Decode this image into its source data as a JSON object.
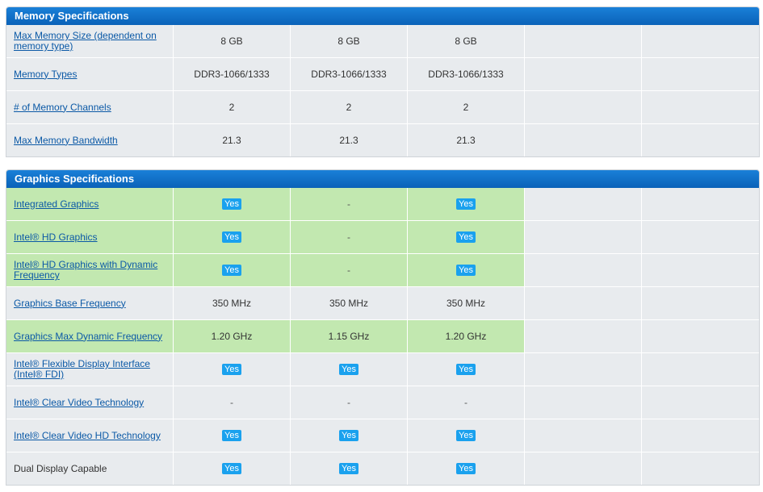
{
  "memory": {
    "title": "Memory Specifications",
    "rows": [
      {
        "label": "Max Memory Size (dependent on memory type)",
        "link": true,
        "highlight": false,
        "values": [
          "8 GB",
          "8 GB",
          "8 GB"
        ]
      },
      {
        "label": "Memory Types",
        "link": true,
        "highlight": false,
        "values": [
          "DDR3-1066/1333",
          "DDR3-1066/1333",
          "DDR3-1066/1333"
        ]
      },
      {
        "label": "# of Memory Channels",
        "link": true,
        "highlight": false,
        "values": [
          "2",
          "2",
          "2"
        ]
      },
      {
        "label": "Max Memory Bandwidth",
        "link": true,
        "highlight": false,
        "values": [
          "21.3",
          "21.3",
          "21.3"
        ]
      }
    ]
  },
  "graphics": {
    "title": "Graphics Specifications",
    "rows": [
      {
        "label": "Integrated Graphics",
        "link": true,
        "highlight": true,
        "values": [
          "Yes",
          "-",
          "Yes"
        ]
      },
      {
        "label": "Intel® HD Graphics",
        "link": true,
        "highlight": true,
        "values": [
          "Yes",
          "-",
          "Yes"
        ]
      },
      {
        "label": "Intel® HD Graphics with Dynamic Frequency",
        "link": true,
        "highlight": true,
        "values": [
          "Yes",
          "-",
          "Yes"
        ]
      },
      {
        "label": "Graphics Base Frequency",
        "link": true,
        "highlight": false,
        "values": [
          "350 MHz",
          "350 MHz",
          "350 MHz"
        ]
      },
      {
        "label": "Graphics Max Dynamic Frequency",
        "link": true,
        "highlight": true,
        "values": [
          "1.20 GHz",
          "1.15 GHz",
          "1.20 GHz"
        ]
      },
      {
        "label": "Intel® Flexible Display Interface (Intel® FDI)",
        "link": true,
        "highlight": false,
        "values": [
          "Yes",
          "Yes",
          "Yes"
        ]
      },
      {
        "label": "Intel® Clear Video Technology",
        "link": true,
        "highlight": false,
        "values": [
          "-",
          "-",
          "-"
        ]
      },
      {
        "label": "Intel® Clear Video HD Technology",
        "link": true,
        "highlight": false,
        "values": [
          "Yes",
          "Yes",
          "Yes"
        ]
      },
      {
        "label": "Dual Display Capable",
        "link": false,
        "highlight": false,
        "values": [
          "Yes",
          "Yes",
          "Yes"
        ]
      }
    ]
  },
  "colors": {
    "header": "#0a6ec8",
    "highlight": "#c2e8b0",
    "cell": "#e8ebee",
    "badge": "#1aa1ee",
    "link": "#0b59a6"
  }
}
